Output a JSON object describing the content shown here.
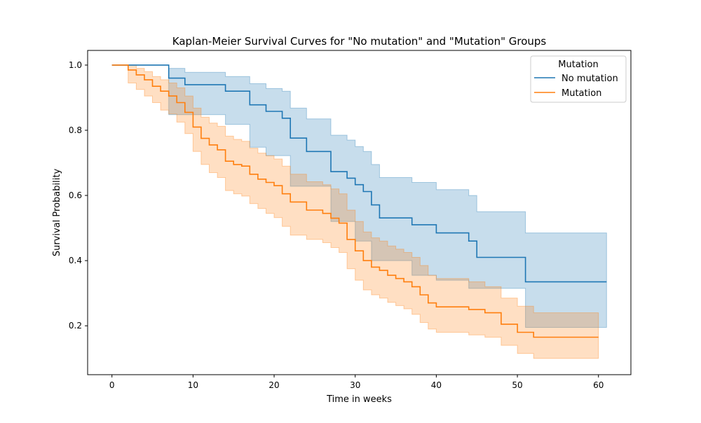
{
  "colors": {
    "no_mutation": "#1f77b4",
    "mutation": "#ff7f0e"
  },
  "chart_data": {
    "type": "line",
    "step": "post",
    "title": "Kaplan-Meier Survival Curves for \"No mutation\" and \"Mutation\" Groups",
    "xlabel": "Time in weeks",
    "ylabel": "Survival Probability",
    "xlim": [
      -3,
      64
    ],
    "ylim": [
      0.05,
      1.045
    ],
    "xticks": [
      0,
      10,
      20,
      30,
      40,
      50,
      60
    ],
    "yticks": [
      0.2,
      0.4,
      0.6,
      0.8,
      1.0
    ],
    "xtick_labels": [
      "0",
      "10",
      "20",
      "30",
      "40",
      "50",
      "60"
    ],
    "ytick_labels": [
      "0.2",
      "0.4",
      "0.6",
      "0.8",
      "1.0"
    ],
    "grid": false,
    "legend": {
      "title": "Mutation",
      "placement": "top-right"
    },
    "series": [
      {
        "name": "No mutation",
        "color_key": "no_mutation",
        "x": [
          0,
          7,
          9,
          14,
          17,
          19,
          21,
          22,
          24,
          27,
          29,
          30,
          31,
          32,
          33,
          37,
          40,
          44,
          45,
          51,
          61
        ],
        "y": [
          1.0,
          0.96,
          0.94,
          0.92,
          0.878,
          0.858,
          0.837,
          0.776,
          0.735,
          0.673,
          0.653,
          0.633,
          0.612,
          0.571,
          0.531,
          0.51,
          0.485,
          0.46,
          0.41,
          0.335,
          0.335
        ],
        "lower": [
          1.0,
          0.848,
          0.848,
          0.818,
          0.748,
          0.722,
          0.722,
          0.628,
          0.628,
          0.52,
          0.52,
          0.46,
          0.46,
          0.4,
          0.4,
          0.355,
          0.34,
          0.315,
          0.315,
          0.195,
          0.195
        ],
        "upper": [
          1.0,
          0.99,
          0.978,
          0.965,
          0.943,
          0.928,
          0.92,
          0.868,
          0.835,
          0.785,
          0.77,
          0.75,
          0.735,
          0.695,
          0.655,
          0.64,
          0.618,
          0.6,
          0.55,
          0.485,
          0.485
        ]
      },
      {
        "name": "Mutation",
        "color_key": "mutation",
        "x": [
          0,
          2,
          3,
          4,
          5,
          6,
          7,
          8,
          9,
          10,
          11,
          12,
          13,
          14,
          15,
          16,
          17,
          18,
          19,
          20,
          21,
          22,
          24,
          26,
          27,
          28,
          29,
          30,
          31,
          32,
          33,
          34,
          35,
          36,
          37,
          38,
          39,
          40,
          44,
          46,
          48,
          50,
          52,
          60
        ],
        "y": [
          1.0,
          0.985,
          0.97,
          0.955,
          0.935,
          0.92,
          0.905,
          0.885,
          0.855,
          0.81,
          0.775,
          0.755,
          0.74,
          0.705,
          0.695,
          0.69,
          0.665,
          0.65,
          0.64,
          0.63,
          0.605,
          0.58,
          0.555,
          0.545,
          0.53,
          0.515,
          0.465,
          0.43,
          0.4,
          0.38,
          0.37,
          0.355,
          0.345,
          0.335,
          0.32,
          0.295,
          0.27,
          0.258,
          0.25,
          0.24,
          0.205,
          0.18,
          0.165,
          0.165
        ],
        "lower": [
          1.0,
          0.945,
          0.925,
          0.905,
          0.885,
          0.862,
          0.85,
          0.825,
          0.79,
          0.735,
          0.695,
          0.67,
          0.655,
          0.615,
          0.605,
          0.598,
          0.575,
          0.56,
          0.545,
          0.532,
          0.505,
          0.478,
          0.465,
          0.455,
          0.44,
          0.425,
          0.375,
          0.34,
          0.31,
          0.295,
          0.285,
          0.272,
          0.262,
          0.252,
          0.235,
          0.21,
          0.19,
          0.18,
          0.172,
          0.165,
          0.14,
          0.115,
          0.1,
          0.1
        ],
        "upper": [
          1.0,
          1.0,
          0.99,
          0.98,
          0.965,
          0.955,
          0.945,
          0.93,
          0.905,
          0.868,
          0.84,
          0.822,
          0.812,
          0.782,
          0.772,
          0.766,
          0.745,
          0.73,
          0.722,
          0.712,
          0.69,
          0.665,
          0.642,
          0.633,
          0.62,
          0.605,
          0.555,
          0.52,
          0.488,
          0.47,
          0.46,
          0.445,
          0.435,
          0.425,
          0.41,
          0.385,
          0.355,
          0.345,
          0.335,
          0.32,
          0.285,
          0.26,
          0.24,
          0.24
        ]
      }
    ]
  }
}
